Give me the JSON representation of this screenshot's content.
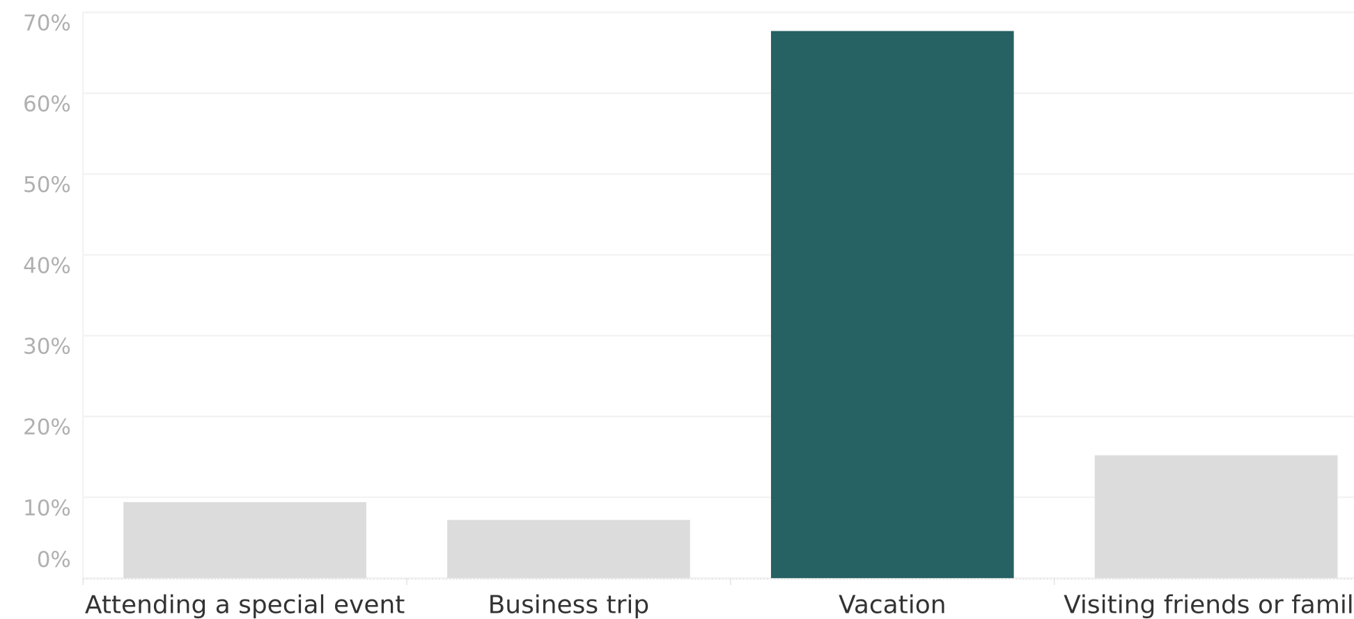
{
  "chart_data": {
    "type": "bar",
    "categories": [
      "Attending a special event",
      "Business trip",
      "Vacation",
      "Visiting friends or family"
    ],
    "values": [
      9.4,
      7.2,
      67.7,
      15.2
    ],
    "colors": [
      "#dcdcdc",
      "#dcdcdc",
      "#266163",
      "#dcdcdc"
    ],
    "ylim": [
      0,
      70
    ],
    "yticks": [
      {
        "value": 0,
        "label": "0%"
      },
      {
        "value": 10,
        "label": "10%"
      },
      {
        "value": 20,
        "label": "20%"
      },
      {
        "value": 30,
        "label": "30%"
      },
      {
        "value": 40,
        "label": "40%"
      },
      {
        "value": 50,
        "label": "50%"
      },
      {
        "value": 60,
        "label": "60%"
      },
      {
        "value": 70,
        "label": "70%"
      }
    ],
    "grid": true
  }
}
